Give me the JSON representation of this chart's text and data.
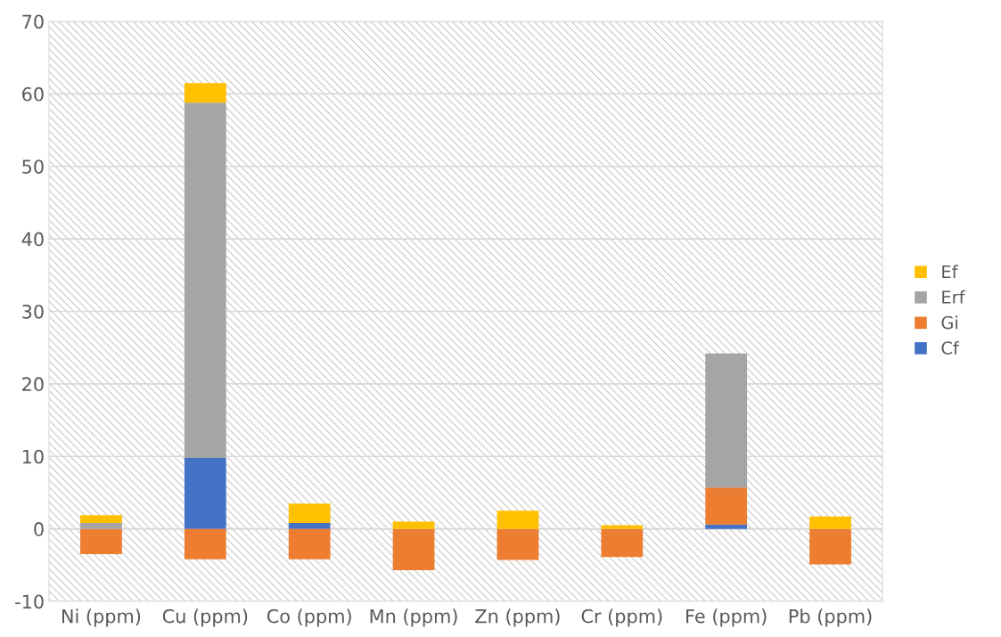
{
  "chart_data": {
    "type": "bar",
    "stacked": true,
    "categories": [
      "Ni (ppm)",
      "Cu (ppm)",
      "Co (ppm)",
      "Mn (ppm)",
      "Zn (ppm)",
      "Cr (ppm)",
      "Fe (ppm)",
      "Pb (ppm)"
    ],
    "series": [
      {
        "name": "Cf",
        "color": "#4472c4",
        "values": [
          0,
          9.8,
          0.8,
          0,
          0,
          0,
          0.6,
          0
        ]
      },
      {
        "name": "Gi",
        "color": "#ed7d31",
        "values": [
          -3.5,
          -4.2,
          -4.2,
          -5.7,
          -4.3,
          -3.9,
          5.1,
          -4.9
        ]
      },
      {
        "name": "Erf",
        "color": "#a5a5a5",
        "values": [
          0.8,
          49.0,
          0,
          0,
          null,
          0,
          18.5,
          null
        ]
      },
      {
        "name": "Ef",
        "color": "#ffc000",
        "values": [
          1.1,
          2.7,
          2.7,
          1.0,
          2.5,
          0.5,
          0,
          1.7
        ]
      }
    ],
    "ylim": [
      -10,
      70
    ],
    "yticks": [
      -10,
      0,
      10,
      20,
      30,
      40,
      50,
      60,
      70
    ],
    "grid": "y",
    "legend": "right"
  }
}
